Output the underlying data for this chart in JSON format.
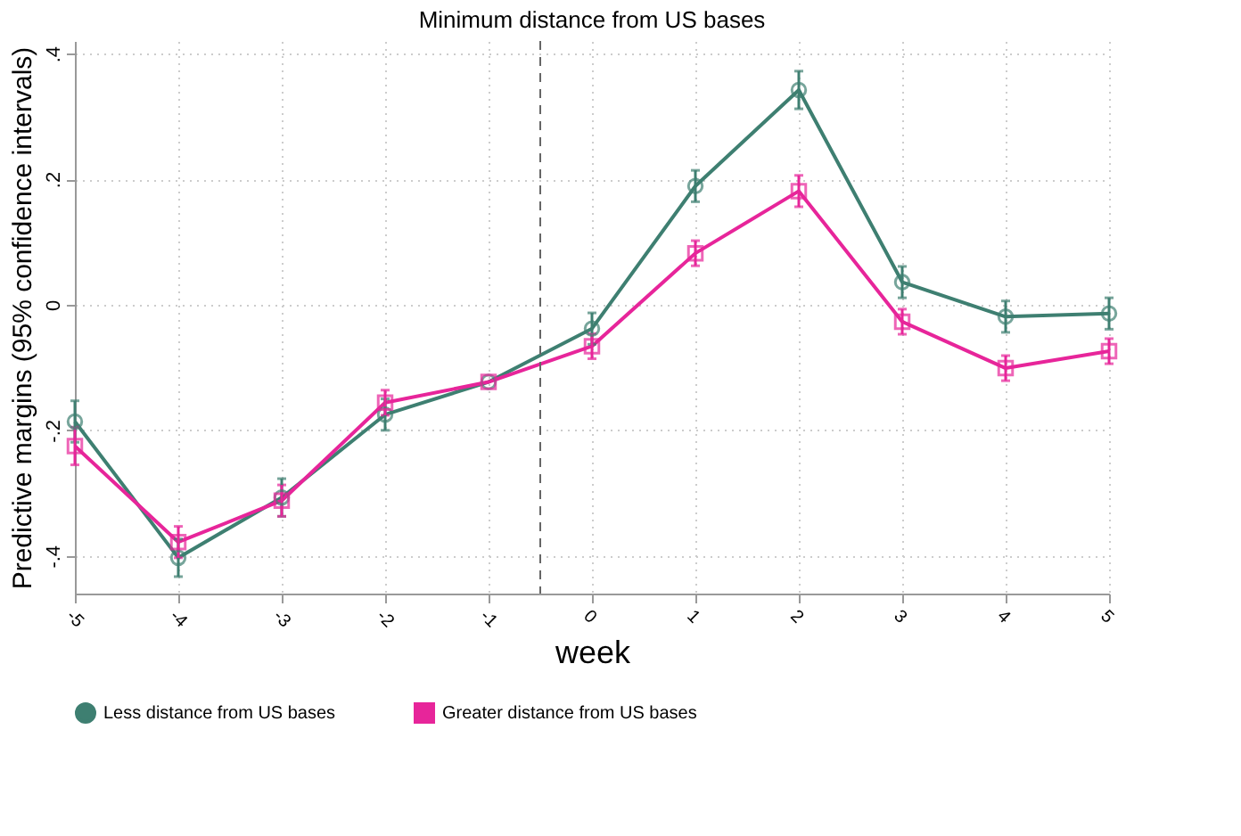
{
  "chart_data": {
    "type": "line",
    "title": "Minimum distance from US bases",
    "xlabel": "week",
    "ylabel": "Predictive margins (95% confidence intervals)",
    "x": [
      -5,
      -4,
      -3,
      -2,
      -1,
      0,
      1,
      2,
      3,
      4,
      5
    ],
    "series": [
      {
        "name": "Less distance from US bases",
        "color": "#3e7f71",
        "marker": "circle",
        "values": [
          -0.186,
          -0.403,
          -0.307,
          -0.175,
          -0.123,
          -0.038,
          0.189,
          0.342,
          0.036,
          -0.019,
          -0.014
        ],
        "errors": [
          0.033,
          0.03,
          0.03,
          0.025,
          null,
          0.025,
          0.025,
          0.03,
          0.025,
          0.025,
          0.025
        ]
      },
      {
        "name": "Greater distance from US bases",
        "color": "#e7259a",
        "marker": "square",
        "values": [
          -0.225,
          -0.378,
          -0.312,
          -0.156,
          -0.123,
          -0.066,
          0.082,
          0.181,
          -0.027,
          -0.101,
          -0.074
        ],
        "errors": [
          0.03,
          0.025,
          0.025,
          0.02,
          null,
          0.02,
          0.02,
          0.025,
          0.02,
          0.02,
          0.02
        ]
      }
    ],
    "xlim": [
      -5,
      5
    ],
    "xticks": [
      -5,
      -4,
      -3,
      -2,
      -1,
      0,
      1,
      2,
      3,
      4,
      5
    ],
    "ylim": [
      -0.46,
      0.42
    ],
    "yticks": [
      {
        "value": -0.4,
        "label": "-.4"
      },
      {
        "value": -0.2,
        "label": "-.2"
      },
      0,
      {
        "value": 0.2,
        "label": ".2"
      },
      {
        "value": 0.4,
        "label": ".4"
      }
    ],
    "ref_lines": [
      {
        "axis": "x",
        "value": -0.5,
        "color": "#666666",
        "line_style": "dashed"
      }
    ],
    "grid": true,
    "legend": "bottom",
    "line_style": "solid"
  }
}
